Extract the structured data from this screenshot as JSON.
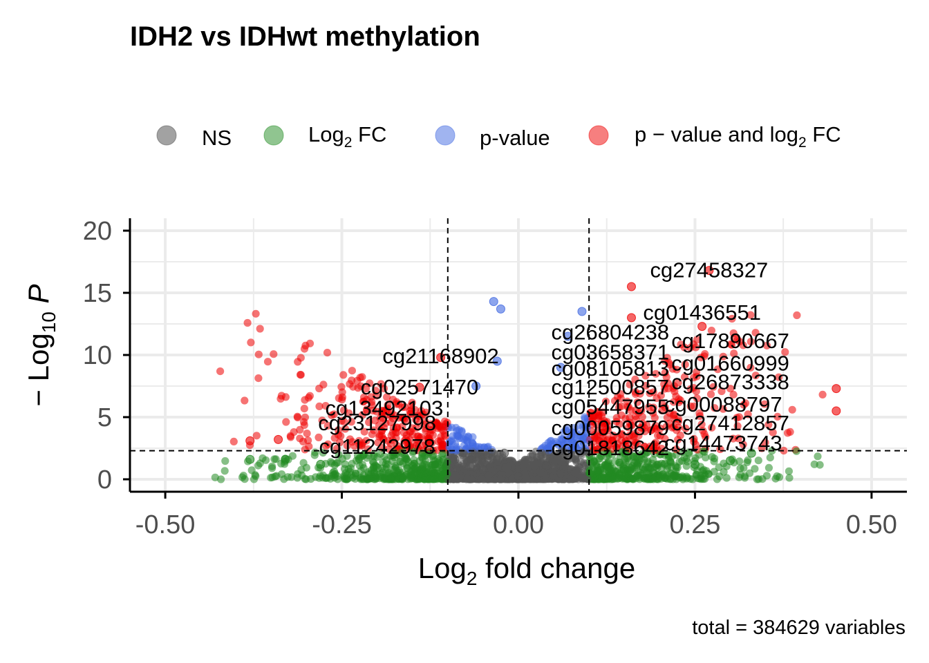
{
  "colors": {
    "NS": "#555555",
    "Log2FC": "#228b22",
    "pvalue": "#4169e1",
    "both": "#ee0000",
    "grid": "#ebebeb",
    "axis": "#000000"
  },
  "legend": {
    "ns": "NS",
    "fc_prefix": "Log",
    "fc_sub": "2",
    "fc_suffix": " FC",
    "pval": "p-value",
    "both_prefix": "p − value  and  log",
    "both_sub": "2",
    "both_suffix": "  FC"
  },
  "axes": {
    "x_title_prefix": "Log",
    "x_title_sub": "2",
    "x_title_suffix": "  fold change",
    "y_title_prefix": "− Log",
    "y_title_sub": "10",
    "y_title_suffix": " P"
  },
  "chart_data": {
    "type": "scatter",
    "title": "IDH2 vs IDHwt methylation",
    "caption": "total = 384629 variables",
    "xlim": [
      -0.55,
      0.55
    ],
    "ylim": [
      -1,
      21
    ],
    "xticks": [
      -0.5,
      -0.25,
      0.0,
      0.25,
      0.5
    ],
    "xtick_labels": [
      "-0.50",
      "-0.25",
      "0.00",
      "0.25",
      "0.50"
    ],
    "yticks": [
      0,
      5,
      10,
      15,
      20
    ],
    "ytick_labels": [
      "0",
      "5",
      "10",
      "15",
      "20"
    ],
    "fc_cutoff": 0.1,
    "p_cutoff_log10": 2.3,
    "grid": true,
    "legend_position": "top",
    "series": [
      {
        "name": "NS",
        "points": [
          [
            -0.09,
            1.6
          ],
          [
            -0.05,
            0.8
          ],
          [
            0.0,
            0.2
          ],
          [
            0.04,
            1.1
          ],
          [
            0.08,
            1.9
          ],
          [
            -0.02,
            2.1
          ],
          [
            0.06,
            0.5
          ]
        ]
      },
      {
        "name": "Log2 FC",
        "points": [
          [
            -0.38,
            1.6
          ],
          [
            -0.33,
            1.6
          ],
          [
            -0.28,
            1.2
          ],
          [
            -0.2,
            0.9
          ],
          [
            0.15,
            0.8
          ],
          [
            0.25,
            1.2
          ],
          [
            0.33,
            2.1
          ],
          [
            0.3,
            1.5
          ]
        ]
      },
      {
        "name": "p-value",
        "points": [
          [
            -0.035,
            14.3
          ],
          [
            -0.025,
            13.7
          ],
          [
            -0.03,
            9.5
          ],
          [
            -0.06,
            7.5
          ],
          [
            0.09,
            13.5
          ],
          [
            0.07,
            11.5
          ],
          [
            0.06,
            9.0
          ]
        ]
      },
      {
        "name": "p − value  and  log2  FC",
        "points": [
          [
            0.16,
            15.5
          ],
          [
            0.27,
            16.8
          ],
          [
            0.16,
            13.0
          ],
          [
            0.26,
            12.3
          ],
          [
            0.45,
            7.3
          ],
          [
            0.45,
            5.5
          ],
          [
            -0.38,
            3.1
          ],
          [
            -0.34,
            3.2
          ],
          [
            -0.14,
            7.4
          ],
          [
            -0.11,
            9.8
          ]
        ]
      }
    ],
    "labels": [
      {
        "text": "cg27458327",
        "x": 0.27,
        "y": 16.8
      },
      {
        "text": "cg01436551",
        "x": 0.26,
        "y": 13.4
      },
      {
        "text": "cg26804238",
        "x": 0.13,
        "y": 11.8
      },
      {
        "text": "cg17890667",
        "x": 0.3,
        "y": 11.1
      },
      {
        "text": "cg21168902",
        "x": -0.11,
        "y": 9.9
      },
      {
        "text": "cg03658371",
        "x": 0.13,
        "y": 10.2
      },
      {
        "text": "cg01660999",
        "x": 0.3,
        "y": 9.3
      },
      {
        "text": "cg08105813",
        "x": 0.13,
        "y": 8.9
      },
      {
        "text": "cg26873338",
        "x": 0.3,
        "y": 7.8
      },
      {
        "text": "cg02571470",
        "x": -0.14,
        "y": 7.4
      },
      {
        "text": "cg12500857",
        "x": 0.13,
        "y": 7.4
      },
      {
        "text": "cg00088797",
        "x": 0.29,
        "y": 6.0
      },
      {
        "text": "cg13492103",
        "x": -0.19,
        "y": 5.7
      },
      {
        "text": "cg05447955",
        "x": 0.13,
        "y": 5.8
      },
      {
        "text": "cg23127998",
        "x": -0.2,
        "y": 4.5
      },
      {
        "text": "cg27412857",
        "x": 0.3,
        "y": 4.5
      },
      {
        "text": "cg00059879",
        "x": 0.13,
        "y": 4.1
      },
      {
        "text": "cg14473743",
        "x": 0.29,
        "y": 2.9
      },
      {
        "text": "cg11242978",
        "x": -0.2,
        "y": 2.6
      },
      {
        "text": "cg01818642",
        "x": 0.13,
        "y": 2.5
      }
    ]
  }
}
